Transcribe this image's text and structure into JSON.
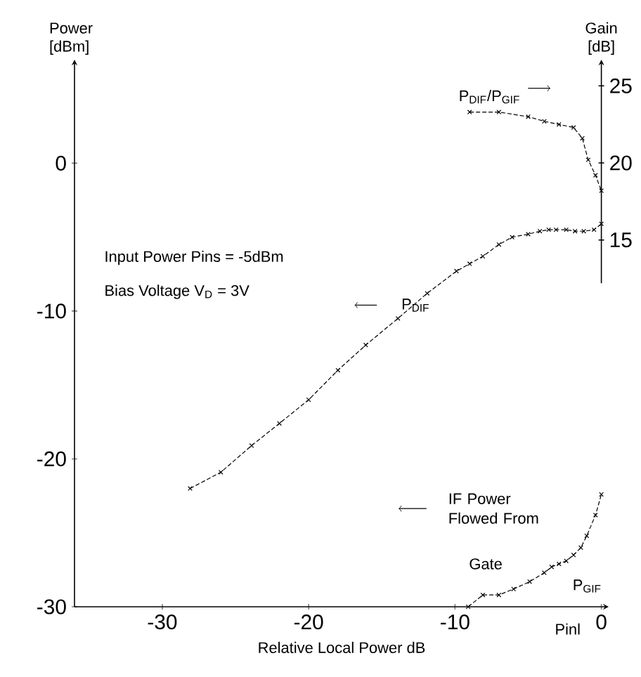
{
  "chart_data": {
    "type": "line",
    "xlabel": "Relative Local Power   dB",
    "ylabel": "Power [dBm]",
    "y2label": "Gain [dB]",
    "xlim": [
      -36,
      0.5
    ],
    "ylim": [
      -30,
      7
    ],
    "y2lim": [
      -8.8,
      26.7
    ],
    "xticks": [
      -30,
      -20,
      -10,
      0
    ],
    "yticks": [
      -30,
      -20,
      -10,
      0
    ],
    "y2ticks": [
      15,
      20,
      25
    ],
    "marker": "cross",
    "line_style": "dashed",
    "grid": false,
    "series": [
      {
        "name": "P$_{DIF}$",
        "color": "#000000",
        "x": [
          -28.1,
          -26.0,
          -23.9,
          -22.0,
          -20.0,
          -18.0,
          -16.1,
          -13.9,
          -11.9,
          -9.9,
          -9.0,
          -8.1,
          -7.0,
          -6.1,
          -5.0,
          -4.2,
          -3.6,
          -3.1,
          -2.4,
          -1.8,
          -1.2,
          -0.5,
          0
        ],
        "values": [
          -22.0,
          -20.9,
          -19.1,
          -17.6,
          -16.0,
          -14.0,
          -12.3,
          -10.5,
          -8.8,
          -7.3,
          -6.8,
          -6.3,
          -5.5,
          -5.0,
          -4.8,
          -4.6,
          -4.5,
          -4.5,
          -4.5,
          -4.6,
          -4.6,
          -4.5,
          -4.1
        ]
      },
      {
        "name": "P$_{DIF}$/P$_{GIF}$",
        "color": "#000000",
        "axis": "y2",
        "x": [
          -9.0,
          -7.0,
          -5.0,
          -3.9,
          -2.9,
          -1.9,
          -1.3,
          -0.9,
          -0.4,
          0
        ],
        "values": [
          23.3,
          23.3,
          23.0,
          22.7,
          22.5,
          22.3,
          21.6,
          20.2,
          19.2,
          18.2
        ]
      },
      {
        "name": "P$_{GIF}$",
        "color": "#000000",
        "x": [
          -9.1,
          -8.1,
          -7.0,
          -6.0,
          -4.9,
          -3.9,
          -3.4,
          -2.9,
          -2.4,
          -1.9,
          -1.4,
          -1.0,
          -0.4,
          0
        ],
        "values": [
          -30.0,
          -29.2,
          -29.2,
          -28.8,
          -28.3,
          -27.7,
          -27.3,
          -27.1,
          -26.9,
          -26.5,
          -26.0,
          -25.2,
          -23.8,
          -22.4
        ]
      }
    ],
    "annotations": [
      "Input Power Pins = -5dBm",
      "Bias Voltage V$_{D}$ = 3V",
      "IF Power Flowed From",
      "Gate",
      "Pinl"
    ]
  }
}
